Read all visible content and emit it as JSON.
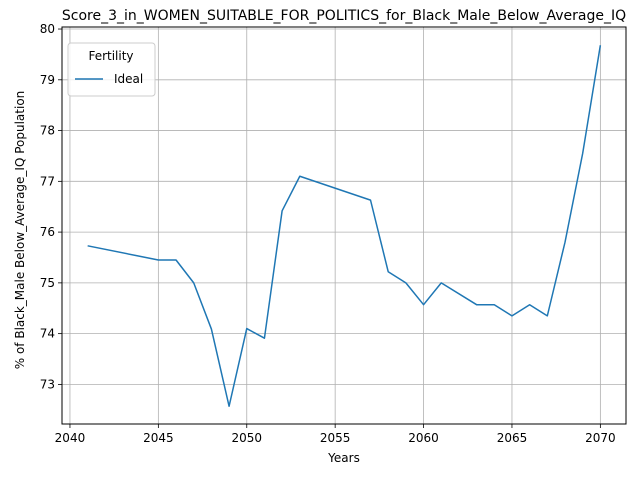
{
  "chart_data": {
    "type": "line",
    "title": "Score_3_in_WOMEN_SUITABLE_FOR_POLITICS_for_Black_Male_Below_Average_IQ",
    "xlabel": "Years",
    "ylabel": "% of Black_Male Below_Average_IQ Population",
    "xlim": [
      2039.55,
      2071.45
    ],
    "ylim": [
      72.22,
      80.04
    ],
    "xticks": [
      2040,
      2045,
      2050,
      2055,
      2060,
      2065,
      2070
    ],
    "yticks": [
      73,
      74,
      75,
      76,
      77,
      78,
      79,
      80
    ],
    "grid": true,
    "legend": {
      "title": "Fertility",
      "placement": "upper-left"
    },
    "series": [
      {
        "name": "Ideal",
        "color": "#1f77b4",
        "x": [
          2041,
          2045,
          2046,
          2047,
          2048,
          2049,
          2050,
          2051,
          2052,
          2053,
          2057,
          2058,
          2059,
          2060,
          2061,
          2063,
          2064,
          2065,
          2066,
          2067,
          2068,
          2069,
          2070
        ],
        "y": [
          75.73,
          75.45,
          75.45,
          75.0,
          74.09,
          72.57,
          74.1,
          73.91,
          76.42,
          77.1,
          76.63,
          75.22,
          75.0,
          74.57,
          75.0,
          74.57,
          74.57,
          74.35,
          74.57,
          74.35,
          75.8,
          77.55,
          79.68
        ]
      }
    ]
  }
}
